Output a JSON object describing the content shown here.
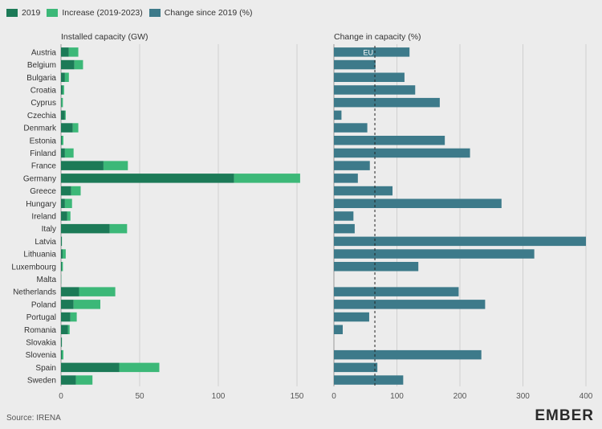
{
  "legend": {
    "items": [
      {
        "label": "2019",
        "color": "#1c7a57"
      },
      {
        "label": "Increase (2019-2023)",
        "color": "#3cb878"
      },
      {
        "label": "Change since 2019 (%)",
        "color": "#3d7a8a"
      }
    ]
  },
  "source": "Source: IRENA",
  "brand": "EMBER",
  "chart_data": [
    {
      "type": "bar",
      "stacked": true,
      "orientation": "horizontal",
      "title": "Installed capacity (GW)",
      "categories": [
        "Austria",
        "Belgium",
        "Bulgaria",
        "Croatia",
        "Cyprus",
        "Czechia",
        "Denmark",
        "Estonia",
        "Finland",
        "France",
        "Germany",
        "Greece",
        "Hungary",
        "Ireland",
        "Italy",
        "Latvia",
        "Lithuania",
        "Luxembourg",
        "Malta",
        "Netherlands",
        "Poland",
        "Portugal",
        "Romania",
        "Slovakia",
        "Slovenia",
        "Spain",
        "Sweden"
      ],
      "series": [
        {
          "name": "2019",
          "values": [
            5,
            8.5,
            2.5,
            1,
            0.3,
            2.5,
            7.5,
            0.5,
            2.5,
            27,
            110,
            6.5,
            2.5,
            4,
            31,
            0.5,
            1,
            0.5,
            0.1,
            11.5,
            8,
            6,
            4.5,
            0.5,
            0.5,
            37,
            9.5
          ]
        },
        {
          "name": "Increase (2019-2023)",
          "values": [
            6,
            5.5,
            2.5,
            1,
            0.9,
            0.5,
            3.5,
            1,
            5.5,
            15.5,
            42,
            6,
            4.5,
            2,
            11,
            0.1,
            2,
            0.7,
            0.1,
            23,
            17,
            4,
            1,
            0.1,
            1,
            25.5,
            10.5
          ]
        }
      ],
      "xlim": [
        0,
        155
      ],
      "xticks": [
        0,
        50,
        100,
        150
      ],
      "grid": true,
      "colors": [
        "#1c7a57",
        "#3cb878"
      ]
    },
    {
      "type": "bar",
      "orientation": "horizontal",
      "title": "Change in capacity (%)",
      "categories": [
        "Austria",
        "Belgium",
        "Bulgaria",
        "Croatia",
        "Cyprus",
        "Czechia",
        "Denmark",
        "Estonia",
        "Finland",
        "France",
        "Germany",
        "Greece",
        "Hungary",
        "Ireland",
        "Italy",
        "Latvia",
        "Lithuania",
        "Luxembourg",
        "Malta",
        "Netherlands",
        "Poland",
        "Portugal",
        "Romania",
        "Slovakia",
        "Slovenia",
        "Spain",
        "Sweden"
      ],
      "series": [
        {
          "name": "Change since 2019 (%)",
          "values": [
            120,
            66,
            112,
            129,
            168,
            12,
            53,
            176,
            216,
            57,
            38,
            93,
            266,
            31,
            33,
            400,
            318,
            134,
            0,
            198,
            240,
            56,
            14,
            0,
            234,
            69,
            110
          ]
        }
      ],
      "xlim": [
        0,
        400
      ],
      "xticks": [
        0,
        100,
        200,
        300,
        400
      ],
      "reference_line": {
        "value": 65,
        "label": "EU",
        "style": "dashed"
      },
      "grid": true,
      "colors": [
        "#3d7a8a"
      ]
    }
  ]
}
